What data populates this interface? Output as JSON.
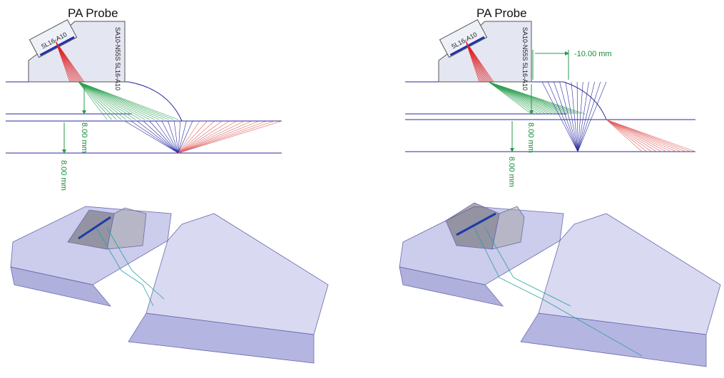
{
  "panels": [
    {
      "title": "PA Probe",
      "probe_label": "5L16-A10",
      "wedge_label": "SA10-N55S 5L16-A10",
      "dimensions": [
        "8.00 mm",
        "8.00 mm"
      ]
    },
    {
      "title": "PA Probe",
      "probe_label": "5L16-A10",
      "wedge_label": "SA10-N55S 5L16-A10",
      "offset": "-10.00 mm",
      "dimensions": [
        "8.00 mm",
        "8.00 mm"
      ]
    }
  ]
}
